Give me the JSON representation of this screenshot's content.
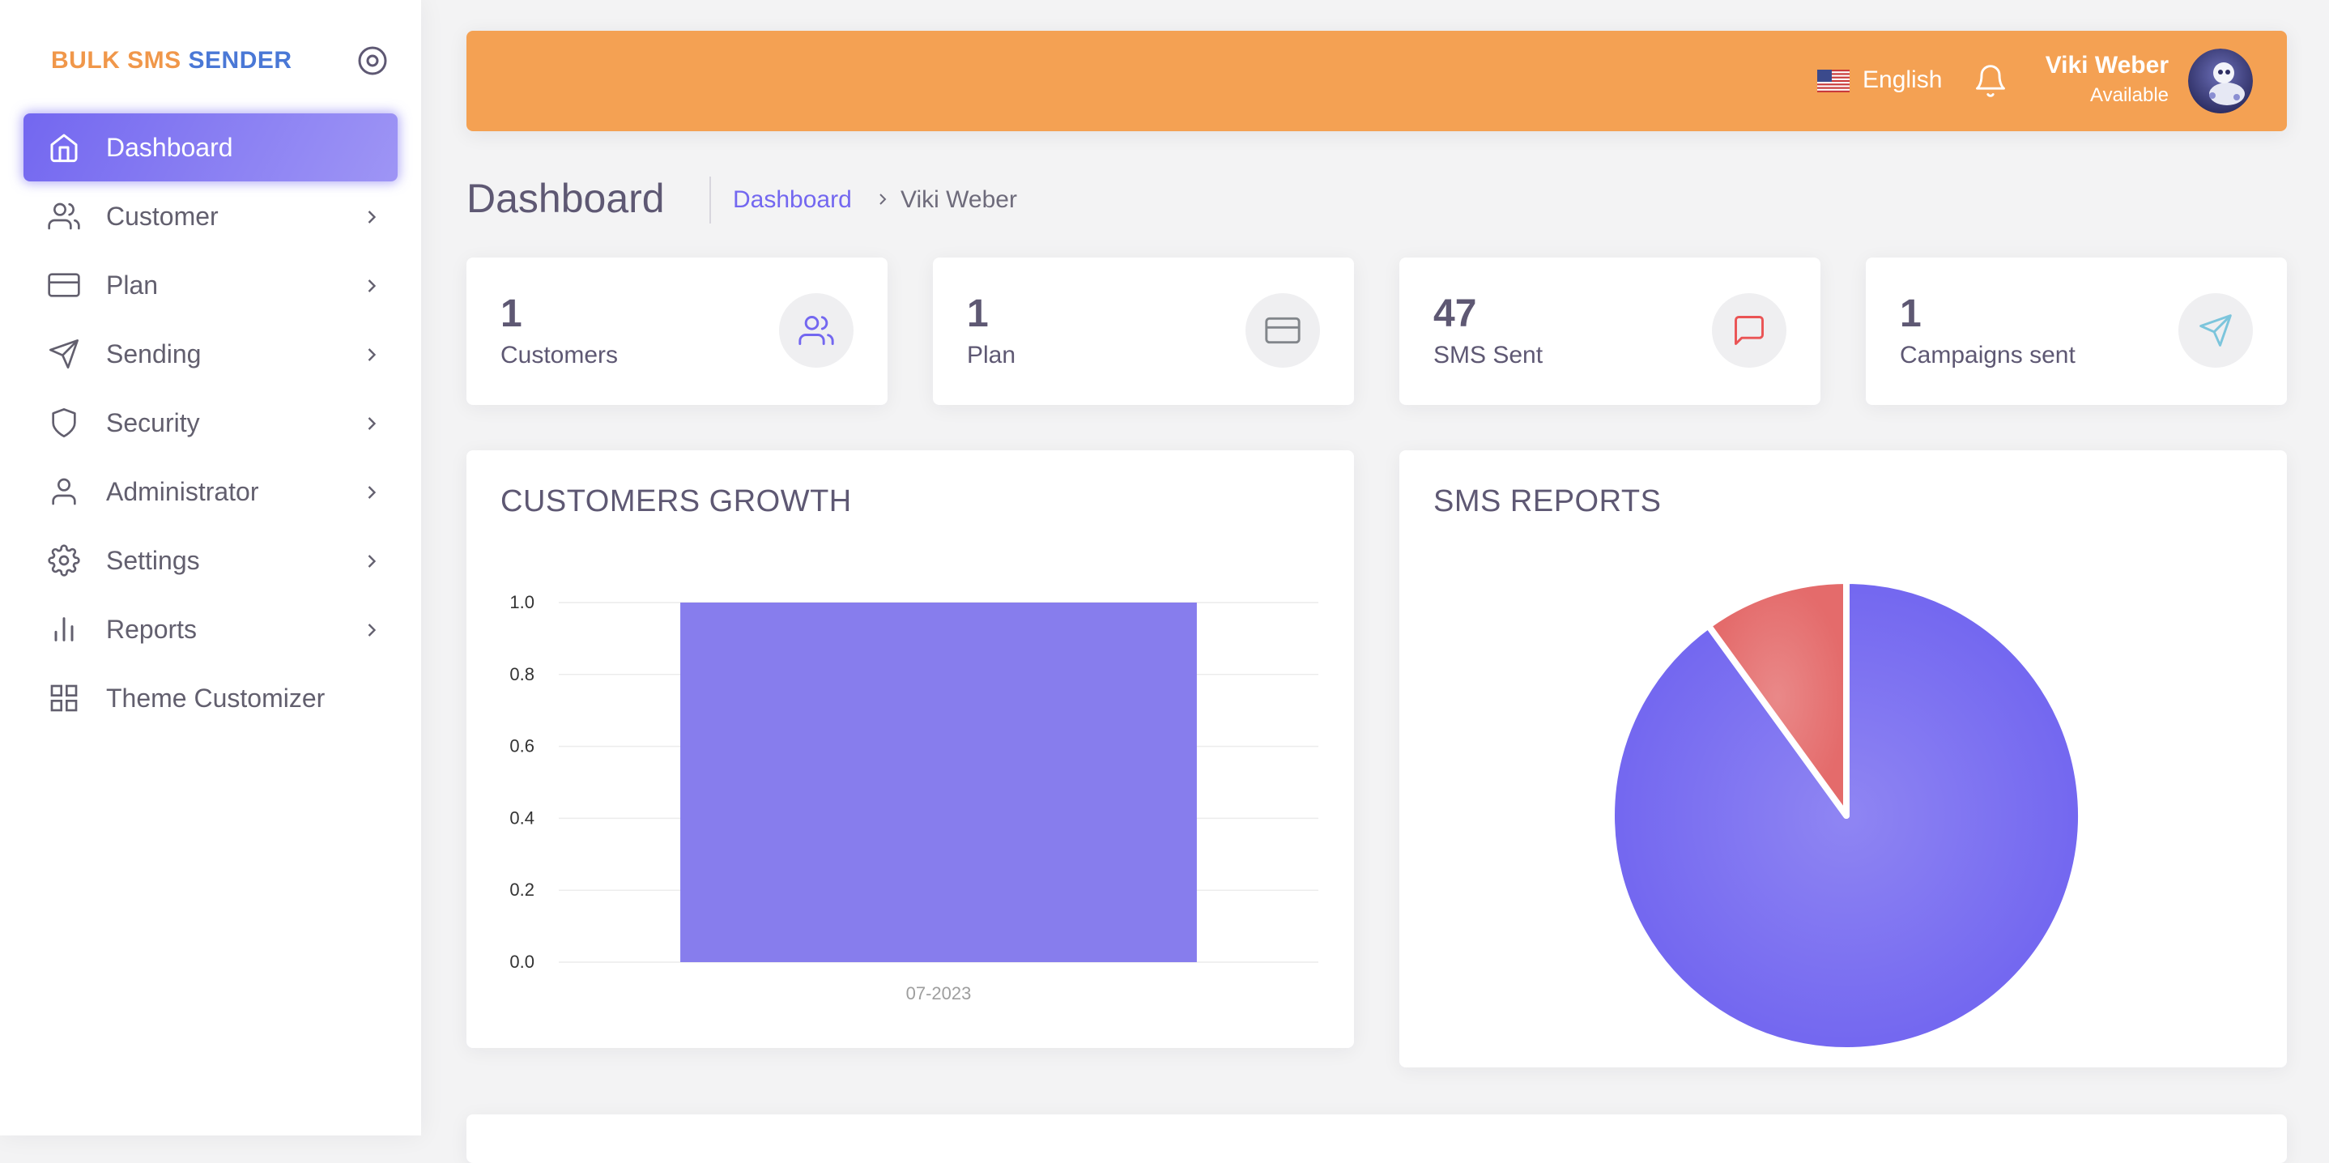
{
  "logo": {
    "part1": "BULK SMS",
    "part2": "SENDER"
  },
  "sidebar": {
    "items": [
      {
        "label": "Dashboard",
        "icon": "home-icon",
        "active": true
      },
      {
        "label": "Customer",
        "icon": "users-icon"
      },
      {
        "label": "Plan",
        "icon": "credit-card-icon"
      },
      {
        "label": "Sending",
        "icon": "send-icon"
      },
      {
        "label": "Security",
        "icon": "shield-icon"
      },
      {
        "label": "Administrator",
        "icon": "user-icon"
      },
      {
        "label": "Settings",
        "icon": "gear-icon"
      },
      {
        "label": "Reports",
        "icon": "bar-chart-icon"
      },
      {
        "label": "Theme Customizer",
        "icon": "grid-icon"
      }
    ]
  },
  "header": {
    "language": "English",
    "user_name": "Viki Weber",
    "user_status": "Available"
  },
  "page": {
    "title": "Dashboard",
    "breadcrumb": {
      "link": "Dashboard",
      "current": "Viki Weber"
    }
  },
  "stats": [
    {
      "value": "1",
      "label": "Customers",
      "icon": "users-icon",
      "color": "#7367f0"
    },
    {
      "value": "1",
      "label": "Plan",
      "icon": "credit-card-icon",
      "color": "#82868b"
    },
    {
      "value": "47",
      "label": "SMS Sent",
      "icon": "message-icon",
      "color": "#ea5455"
    },
    {
      "value": "1",
      "label": "Campaigns sent",
      "icon": "send-icon",
      "color": "#00cfe8"
    }
  ],
  "colors": {
    "accent": "#7367f0",
    "header": "#f4a153",
    "danger": "#e46b6b"
  },
  "chart_data": [
    {
      "type": "bar",
      "title": "CUSTOMERS GROWTH",
      "categories": [
        "07-2023"
      ],
      "values": [
        1
      ],
      "ylim": [
        0,
        1
      ],
      "yticks": [
        "0.0",
        "0.2",
        "0.4",
        "0.6",
        "0.8",
        "1.0"
      ],
      "grid": true
    },
    {
      "type": "pie",
      "title": "SMS REPORTS",
      "slices": [
        {
          "value": 90,
          "color": "#7367f0"
        },
        {
          "value": 10,
          "color": "#e46b6b"
        }
      ]
    }
  ]
}
